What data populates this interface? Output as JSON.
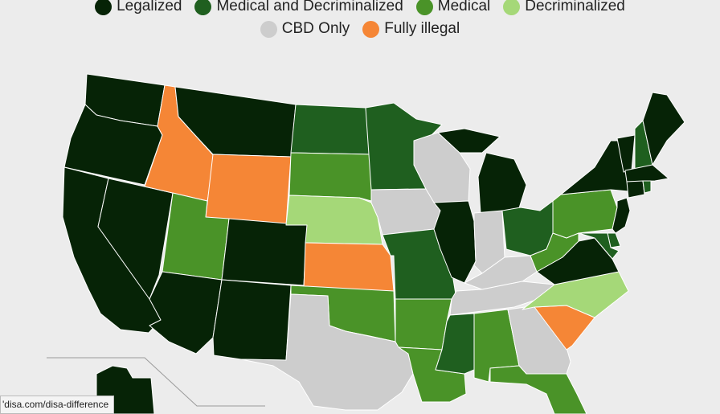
{
  "legend": [
    {
      "label": "Legalized",
      "color": "#062306"
    },
    {
      "label": "Medical and Decriminalized",
      "color": "#1f5f1f"
    },
    {
      "label": "Medical",
      "color": "#4a9328"
    },
    {
      "label": "Decriminalized",
      "color": "#a5d878"
    },
    {
      "label": "CBD Only",
      "color": "#cdcdcd"
    },
    {
      "label": "Fully illegal",
      "color": "#f58636"
    }
  ],
  "map": {
    "states": [
      {
        "id": "WA",
        "status": "Legalized"
      },
      {
        "id": "OR",
        "status": "Legalized"
      },
      {
        "id": "CA",
        "status": "Legalized"
      },
      {
        "id": "NV",
        "status": "Legalized"
      },
      {
        "id": "ID",
        "status": "Fully illegal"
      },
      {
        "id": "MT",
        "status": "Legalized"
      },
      {
        "id": "WY",
        "status": "Fully illegal"
      },
      {
        "id": "UT",
        "status": "Medical"
      },
      {
        "id": "AZ",
        "status": "Legalized"
      },
      {
        "id": "CO",
        "status": "Legalized"
      },
      {
        "id": "NM",
        "status": "Legalized"
      },
      {
        "id": "ND",
        "status": "Medical and Decriminalized"
      },
      {
        "id": "SD",
        "status": "Medical"
      },
      {
        "id": "NE",
        "status": "Decriminalized"
      },
      {
        "id": "KS",
        "status": "Fully illegal"
      },
      {
        "id": "OK",
        "status": "Medical"
      },
      {
        "id": "TX",
        "status": "CBD Only"
      },
      {
        "id": "MN",
        "status": "Medical and Decriminalized"
      },
      {
        "id": "IA",
        "status": "CBD Only"
      },
      {
        "id": "MO",
        "status": "Medical and Decriminalized"
      },
      {
        "id": "AR",
        "status": "Medical"
      },
      {
        "id": "LA",
        "status": "Medical"
      },
      {
        "id": "WI",
        "status": "CBD Only"
      },
      {
        "id": "IL",
        "status": "Legalized"
      },
      {
        "id": "MI",
        "status": "Legalized"
      },
      {
        "id": "IN",
        "status": "CBD Only"
      },
      {
        "id": "OH",
        "status": "Medical and Decriminalized"
      },
      {
        "id": "KY",
        "status": "CBD Only"
      },
      {
        "id": "TN",
        "status": "CBD Only"
      },
      {
        "id": "MS",
        "status": "Medical and Decriminalized"
      },
      {
        "id": "AL",
        "status": "Medical"
      },
      {
        "id": "GA",
        "status": "CBD Only"
      },
      {
        "id": "FL",
        "status": "Medical"
      },
      {
        "id": "SC",
        "status": "Fully illegal"
      },
      {
        "id": "NC",
        "status": "Decriminalized"
      },
      {
        "id": "VA",
        "status": "Legalized"
      },
      {
        "id": "WV",
        "status": "Medical"
      },
      {
        "id": "PA",
        "status": "Medical"
      },
      {
        "id": "NY",
        "status": "Legalized"
      },
      {
        "id": "VT",
        "status": "Legalized"
      },
      {
        "id": "NH",
        "status": "Medical and Decriminalized"
      },
      {
        "id": "ME",
        "status": "Legalized"
      },
      {
        "id": "MA",
        "status": "Legalized"
      },
      {
        "id": "CT",
        "status": "Legalized"
      },
      {
        "id": "RI",
        "status": "Medical and Decriminalized"
      },
      {
        "id": "NJ",
        "status": "Legalized"
      },
      {
        "id": "DE",
        "status": "Medical and Decriminalized"
      },
      {
        "id": "MD",
        "status": "Medical and Decriminalized"
      },
      {
        "id": "AK",
        "status": "Legalized"
      }
    ]
  },
  "status_bar": {
    "url": "'disa.com/disa-difference"
  }
}
